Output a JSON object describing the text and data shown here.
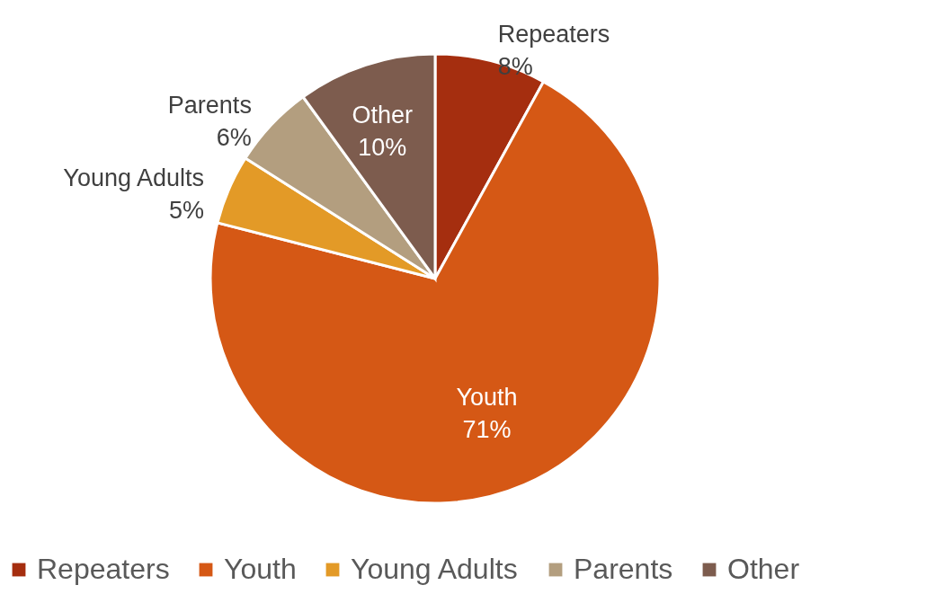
{
  "chart_data": {
    "type": "pie",
    "categories": [
      "Repeaters",
      "Youth",
      "Young Adults",
      "Parents",
      "Other"
    ],
    "values": [
      8,
      71,
      5,
      6,
      10
    ],
    "colors": [
      "#a52e0f",
      "#d55815",
      "#e39a27",
      "#b39e7f",
      "#7d5c4e"
    ],
    "value_labels": [
      "8%",
      "71%",
      "5%",
      "6%",
      "10%"
    ],
    "legend": "bottom"
  }
}
